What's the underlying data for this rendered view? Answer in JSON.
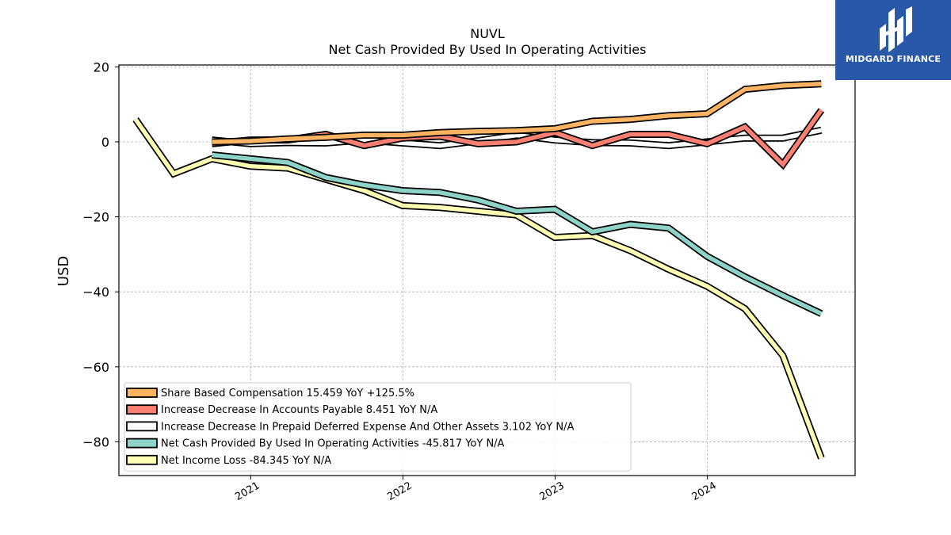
{
  "chart_data": {
    "type": "line",
    "title": "NUVL",
    "subtitle": "Net Cash Provided By Used In Operating Activities",
    "ylabel": "USD",
    "xlabel": "",
    "ylim": [
      -89,
      20.5
    ],
    "xlim": [
      "2020-02-20",
      "2024-12-20"
    ],
    "yticks": [
      20,
      0,
      -20,
      -40,
      -60,
      -80
    ],
    "ytick_labels": [
      "20",
      "0",
      "−20",
      "−40",
      "−60",
      "−80"
    ],
    "xticks": [
      "2021-01-01",
      "2022-01-01",
      "2023-01-01",
      "2024-01-01"
    ],
    "xtick_labels": [
      "2021",
      "2022",
      "2023",
      "2024"
    ],
    "grid": true,
    "legend_position": "lower-left",
    "series": [
      {
        "name": "Net Income Loss",
        "legend": "Net Income Loss  -84.345 YoY N/A",
        "color": "#ffffb3",
        "x": [
          "2020-03-31",
          "2020-06-30",
          "2020-09-30",
          "2020-12-31",
          "2021-03-31",
          "2021-06-30",
          "2021-09-30",
          "2021-12-31",
          "2022-03-31",
          "2022-06-30",
          "2022-09-30",
          "2022-12-31",
          "2023-03-31",
          "2023-06-30",
          "2023-09-30",
          "2023-12-31",
          "2024-03-31",
          "2024-06-30",
          "2024-09-30"
        ],
        "values": [
          6.0,
          -8.5,
          -4.5,
          -6.5,
          -7.0,
          -10.0,
          -13.0,
          -17.0,
          -17.5,
          -18.5,
          -19.5,
          -25.5,
          -25.0,
          -29.0,
          -34.0,
          -38.5,
          -44.5,
          -57.0,
          -84.345
        ]
      },
      {
        "name": "Net Cash Provided By Used In Operating Activities",
        "legend": "Net Cash Provided By Used In Operating Activities  -45.817 YoY N/A",
        "color": "#8dd3c7",
        "x": [
          "2020-09-30",
          "2020-12-31",
          "2021-03-31",
          "2021-06-30",
          "2021-09-30",
          "2021-12-31",
          "2022-03-31",
          "2022-06-30",
          "2022-09-30",
          "2022-12-31",
          "2023-03-31",
          "2023-06-30",
          "2023-09-30",
          "2023-12-31",
          "2024-03-31",
          "2024-06-30",
          "2024-09-30"
        ],
        "values": [
          -3.5,
          -4.5,
          -5.5,
          -9.5,
          -11.5,
          -13.0,
          -13.5,
          -15.5,
          -18.5,
          -18.0,
          -24.0,
          -22.0,
          -23.0,
          -30.5,
          -36.0,
          -41.0,
          -45.817
        ]
      },
      {
        "name": "Increase Decrease In Prepaid Deferred Expense And Other Assets",
        "legend": "Increase Decrease In Prepaid Deferred Expense And Other Assets  3.102 YoY N/A",
        "color": "#ffffff",
        "x": [
          "2020-09-30",
          "2020-12-31",
          "2021-03-31",
          "2021-06-30",
          "2021-09-30",
          "2021-12-31",
          "2022-03-31",
          "2022-06-30",
          "2022-09-30",
          "2022-12-31",
          "2023-03-31",
          "2023-06-30",
          "2023-09-30",
          "2023-12-31",
          "2024-03-31",
          "2024-06-30",
          "2024-09-30"
        ],
        "values": [
          0.5,
          -0.5,
          -0.2,
          -0.3,
          0.5,
          -0.3,
          -1.0,
          0.3,
          1.8,
          0.5,
          -0.2,
          -0.3,
          -1.0,
          0.0,
          1.0,
          1.0,
          3.102
        ]
      },
      {
        "name": "Increase Decrease In Accounts Payable",
        "legend": "Increase Decrease In Accounts Payable  8.451 YoY N/A",
        "color": "#fb8072",
        "x": [
          "2020-09-30",
          "2020-12-31",
          "2021-03-31",
          "2021-06-30",
          "2021-09-30",
          "2021-12-31",
          "2022-03-31",
          "2022-06-30",
          "2022-09-30",
          "2022-12-31",
          "2023-03-31",
          "2023-06-30",
          "2023-09-30",
          "2023-12-31",
          "2024-03-31",
          "2024-06-30",
          "2024-09-30"
        ],
        "values": [
          -0.5,
          0.5,
          0.5,
          2.0,
          -1.0,
          1.0,
          1.5,
          -0.5,
          0.0,
          2.5,
          -1.0,
          2.0,
          2.0,
          -0.5,
          4.0,
          -6.0,
          8.451
        ]
      },
      {
        "name": "Share Based Compensation",
        "legend": "Share Based Compensation  15.459 YoY +125.5%",
        "color": "#fdb462",
        "x": [
          "2020-09-30",
          "2020-12-31",
          "2021-03-31",
          "2021-06-30",
          "2021-09-30",
          "2021-12-31",
          "2022-03-31",
          "2022-06-30",
          "2022-09-30",
          "2022-12-31",
          "2023-03-31",
          "2023-06-30",
          "2023-09-30",
          "2023-12-31",
          "2024-03-31",
          "2024-06-30",
          "2024-09-30"
        ],
        "values": [
          0.0,
          0.2,
          0.8,
          1.2,
          1.8,
          1.8,
          2.5,
          2.8,
          3.0,
          3.5,
          5.5,
          6.0,
          7.0,
          7.5,
          14.0,
          15.0,
          15.459
        ]
      }
    ],
    "legend_order": [
      4,
      3,
      2,
      1,
      0
    ]
  },
  "brand": {
    "name": "MIDGARD FINANCE",
    "background": "#2a58a8",
    "icon": "midgard-finance-logo-icon"
  }
}
